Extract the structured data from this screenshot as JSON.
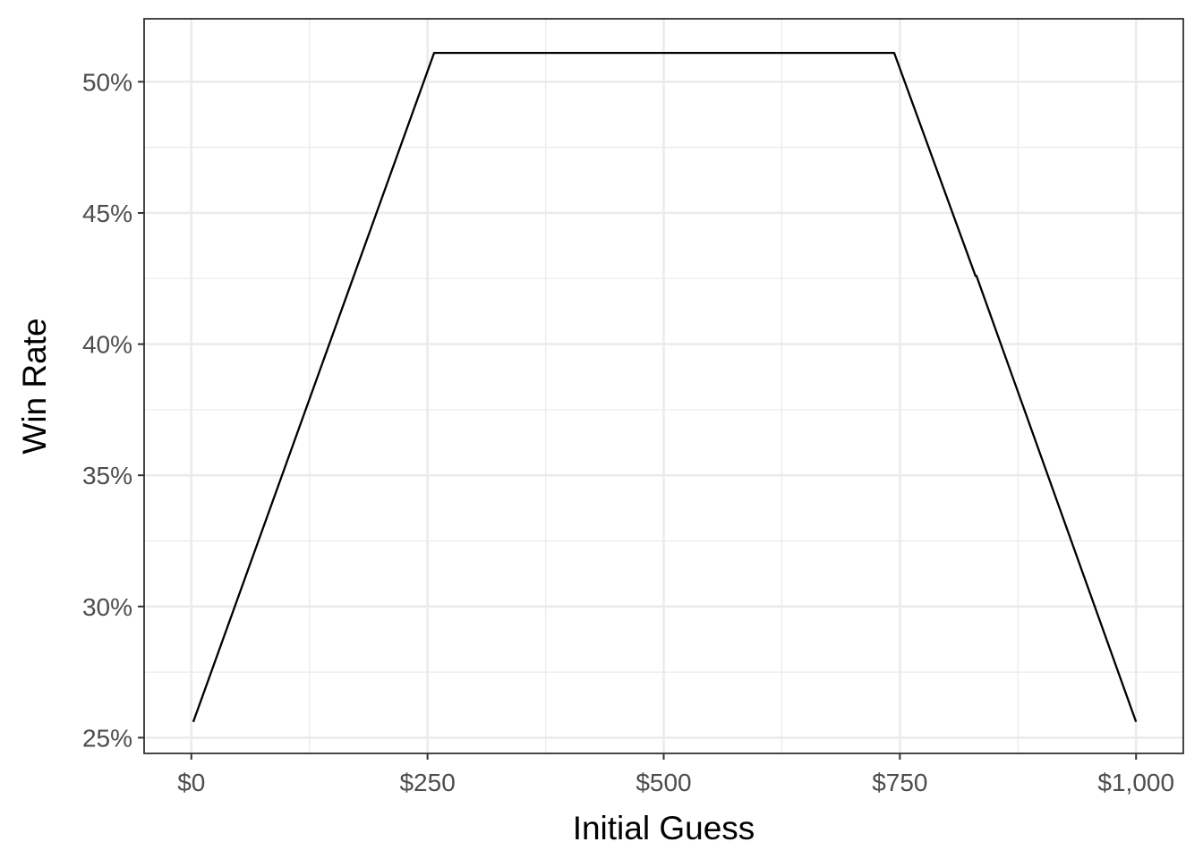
{
  "chart_data": {
    "type": "line",
    "xlabel": "Initial Guess",
    "ylabel": "Win Rate",
    "xlim": [
      -50,
      1050
    ],
    "ylim": [
      24.4,
      52.4
    ],
    "x_ticks": [
      0,
      250,
      500,
      750,
      1000
    ],
    "x_tick_labels": [
      "$0",
      "$250",
      "$500",
      "$750",
      "$1,000"
    ],
    "y_ticks": [
      25,
      30,
      35,
      40,
      45,
      50
    ],
    "y_tick_labels": [
      "25%",
      "30%",
      "35%",
      "40%",
      "45%",
      "50%"
    ],
    "x_minor_ticks": [
      125,
      375,
      625,
      875
    ],
    "y_minor_ticks": [
      27.5,
      32.5,
      37.5,
      42.5,
      47.5
    ],
    "grid": true,
    "series": [
      {
        "x": [
          2,
          257,
          744,
          830,
          831,
          1000
        ],
        "values": [
          25.6,
          51.1,
          51.1,
          42.6,
          42.6,
          25.6
        ]
      }
    ]
  }
}
